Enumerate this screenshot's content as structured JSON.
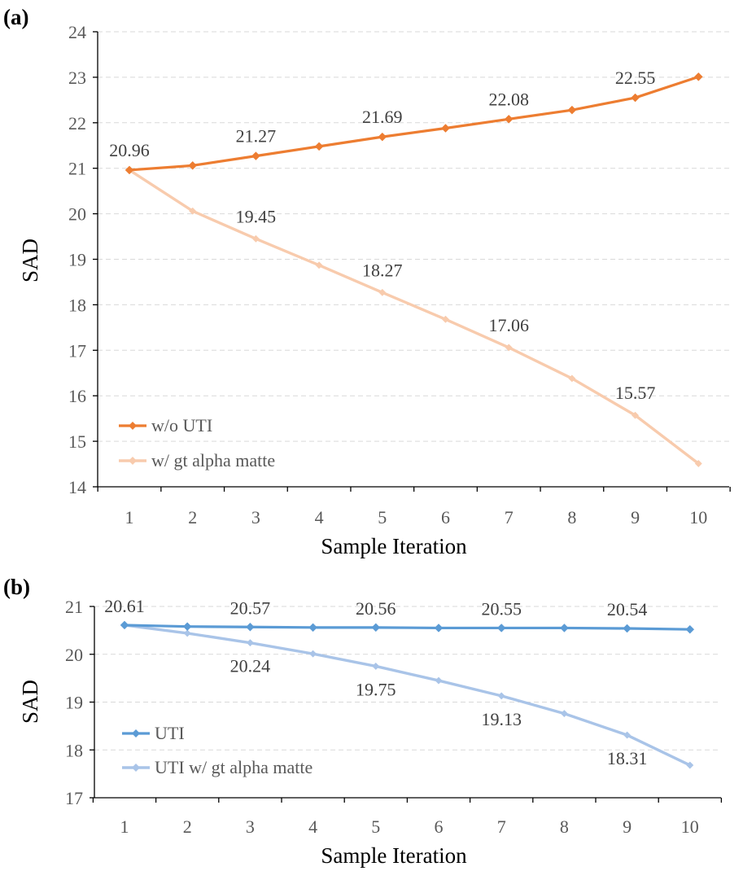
{
  "chart_data": [
    {
      "panel_label": "(a)",
      "type": "line",
      "xlabel": "Sample Iteration",
      "ylabel": "SAD",
      "x": [
        1,
        2,
        3,
        4,
        5,
        6,
        7,
        8,
        9,
        10
      ],
      "ylim": [
        14,
        24
      ],
      "yticks": [
        14,
        15,
        16,
        17,
        18,
        19,
        20,
        21,
        22,
        23,
        24
      ],
      "grid": "horizontal dashed",
      "legend": "bottom-left",
      "series": [
        {
          "name": "w/o UTI",
          "color": "#ED7D31",
          "values": [
            20.96,
            21.06,
            21.27,
            21.48,
            21.69,
            21.88,
            22.08,
            22.28,
            22.55,
            23.01
          ],
          "labels": [
            {
              "i": 0,
              "text": "20.96"
            },
            {
              "i": 2,
              "text": "21.27"
            },
            {
              "i": 4,
              "text": "21.69"
            },
            {
              "i": 6,
              "text": "22.08"
            },
            {
              "i": 8,
              "text": "22.55"
            }
          ]
        },
        {
          "name": "w/ gt alpha matte",
          "color": "#F8CBAD",
          "values": [
            20.96,
            20.06,
            19.45,
            18.87,
            18.27,
            17.68,
            17.06,
            16.38,
            15.57,
            14.51
          ],
          "labels": [
            {
              "i": 2,
              "text": "19.45"
            },
            {
              "i": 4,
              "text": "18.27"
            },
            {
              "i": 6,
              "text": "17.06"
            },
            {
              "i": 8,
              "text": "15.57"
            }
          ]
        }
      ]
    },
    {
      "panel_label": "(b)",
      "type": "line",
      "xlabel": "Sample Iteration",
      "ylabel": "SAD",
      "x": [
        1,
        2,
        3,
        4,
        5,
        6,
        7,
        8,
        9,
        10
      ],
      "ylim": [
        17,
        21
      ],
      "yticks": [
        17,
        18,
        19,
        20,
        21
      ],
      "grid": "horizontal dashed",
      "legend": "bottom-left",
      "series": [
        {
          "name": "UTI",
          "color": "#5B9BD5",
          "values": [
            20.61,
            20.58,
            20.57,
            20.56,
            20.56,
            20.55,
            20.55,
            20.55,
            20.54,
            20.52
          ],
          "labels": [
            {
              "i": 0,
              "text": "20.61"
            },
            {
              "i": 2,
              "text": "20.57"
            },
            {
              "i": 4,
              "text": "20.56"
            },
            {
              "i": 6,
              "text": "20.55"
            },
            {
              "i": 8,
              "text": "20.54"
            }
          ]
        },
        {
          "name": "UTI w/ gt alpha matte",
          "color": "#A9C4E8",
          "values": [
            20.61,
            20.44,
            20.24,
            20.01,
            19.75,
            19.45,
            19.13,
            18.76,
            18.31,
            17.68
          ],
          "labels": [
            {
              "i": 2,
              "text": "20.24"
            },
            {
              "i": 4,
              "text": "19.75"
            },
            {
              "i": 6,
              "text": "19.13"
            },
            {
              "i": 8,
              "text": "18.31"
            }
          ]
        }
      ]
    }
  ]
}
